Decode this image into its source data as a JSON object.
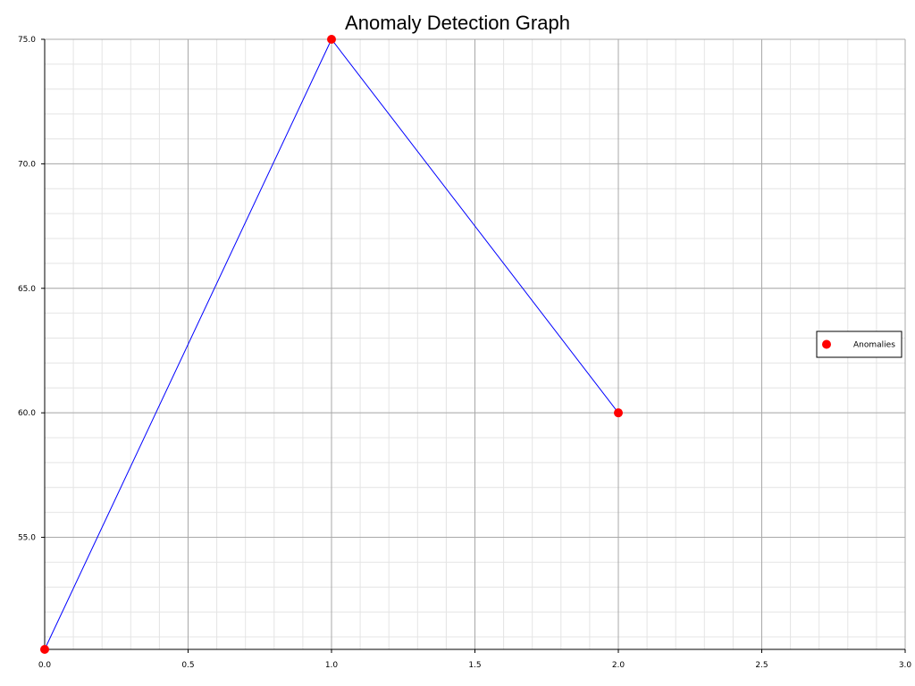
{
  "chart_data": {
    "type": "line",
    "title": "Anomaly Detection Graph",
    "xlabel": "",
    "ylabel": "",
    "xlim": [
      0.0,
      3.0
    ],
    "ylim": [
      50.5,
      75.0
    ],
    "x_ticks": [
      0.0,
      0.5,
      1.0,
      1.5,
      2.0,
      2.5,
      3.0
    ],
    "x_tick_labels": [
      "0.0",
      "0.5",
      "1.0",
      "1.5",
      "2.0",
      "2.5",
      "3.0"
    ],
    "y_ticks": [
      55.0,
      60.0,
      65.0,
      70.0,
      75.0
    ],
    "y_tick_labels": [
      "55.0",
      "60.0",
      "65.0",
      "70.0",
      "75.0"
    ],
    "grid": true,
    "minor_grid": true,
    "series": [
      {
        "type": "line",
        "x": [
          0,
          1,
          2
        ],
        "y": [
          50.5,
          75.0,
          60.0
        ],
        "color": "#0000ff"
      },
      {
        "type": "scatter",
        "name": "Anomalies",
        "x": [
          0,
          1,
          2
        ],
        "y": [
          50.5,
          75.0,
          60.0
        ],
        "color": "#ff0000"
      }
    ],
    "legend": {
      "placement": "right",
      "entries": [
        "Anomalies"
      ]
    }
  }
}
